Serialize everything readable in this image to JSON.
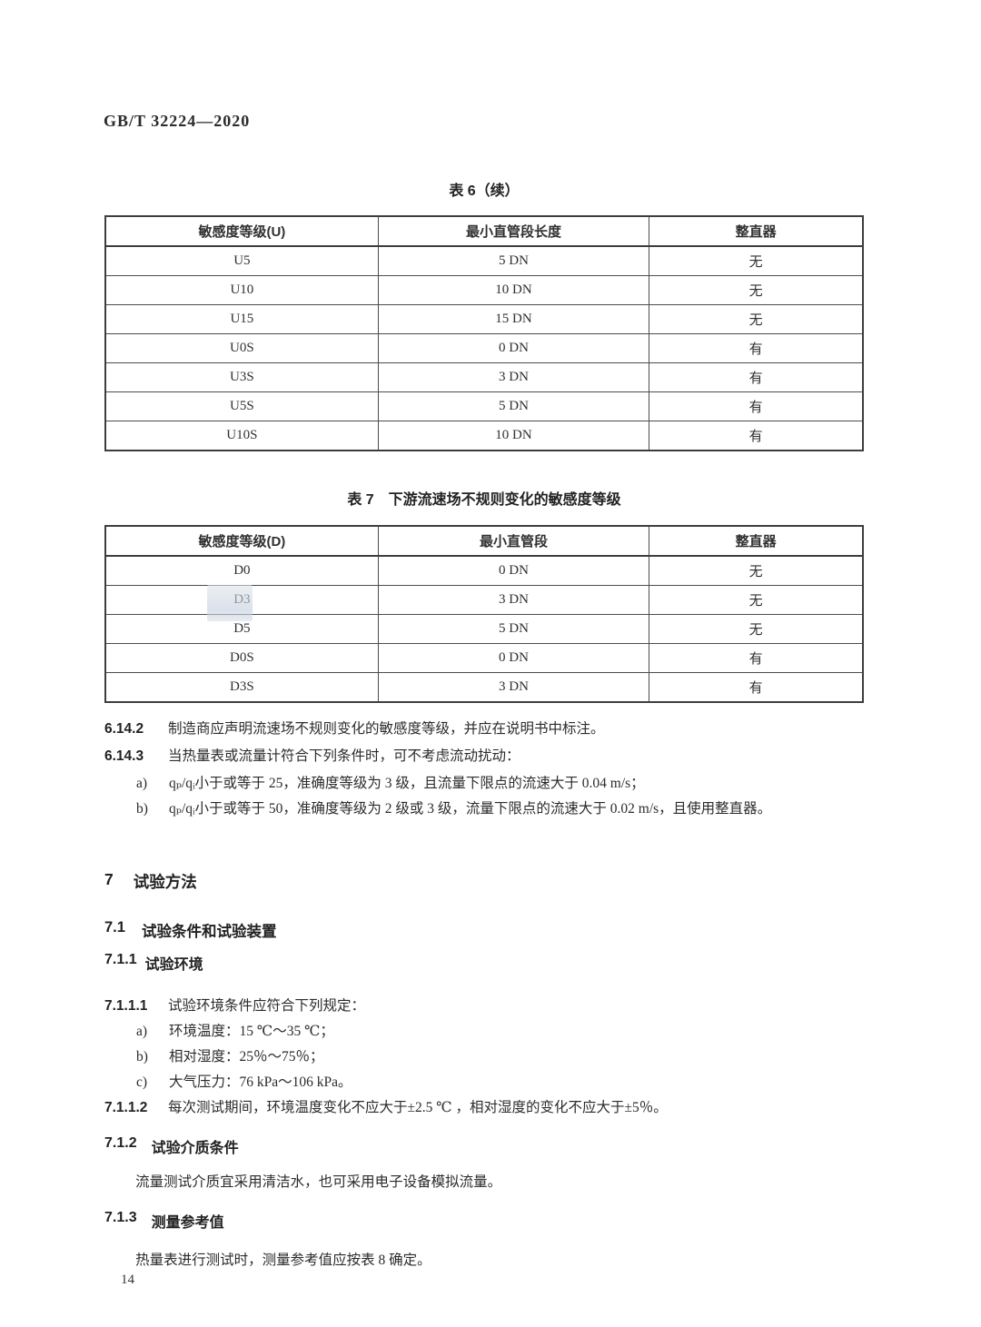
{
  "page": {
    "doc_number": "GB/T 32224—2020",
    "page_number": "14"
  },
  "table6": {
    "title": "表 6（续）",
    "headers": [
      "敏感度等级(U)",
      "最小直管段长度",
      "整直器"
    ],
    "rows": [
      [
        "U5",
        "5 DN",
        "无"
      ],
      [
        "U10",
        "10 DN",
        "无"
      ],
      [
        "U15",
        "15 DN",
        "无"
      ],
      [
        "U0S",
        "0 DN",
        "有"
      ],
      [
        "U3S",
        "3 DN",
        "有"
      ],
      [
        "U5S",
        "5 DN",
        "有"
      ],
      [
        "U10S",
        "10 DN",
        "有"
      ]
    ]
  },
  "table7": {
    "title": "表 7　下游流速场不规则变化的敏感度等级",
    "headers": [
      "敏感度等级(D)",
      "最小直管段",
      "整直器"
    ],
    "rows": [
      [
        "D0",
        "0 DN",
        "无"
      ],
      [
        "D3",
        "3 DN",
        "无"
      ],
      [
        "D5",
        "5 DN",
        "无"
      ],
      [
        "D0S",
        "0 DN",
        "有"
      ],
      [
        "D3S",
        "3 DN",
        "有"
      ]
    ]
  },
  "clauses": {
    "c6142": {
      "num": "6.14.2",
      "text": "制造商应声明流速场不规则变化的敏感度等级，并应在说明书中标注。"
    },
    "c6143": {
      "num": "6.14.3",
      "text": "当热量表或流量计符合下列条件时，可不考虑流动扰动："
    },
    "c6143a": {
      "label": "a)",
      "text": "qₚ/qᵢ小于或等于 25，准确度等级为 3 级，且流量下限点的流速大于 0.04 m/s；"
    },
    "c6143b": {
      "label": "b)",
      "text": "qₚ/qᵢ小于或等于 50，准确度等级为 2 级或 3 级，流量下限点的流速大于 0.02 m/s，且使用整直器。"
    }
  },
  "section7": {
    "h7": {
      "num": "7",
      "title": "试验方法"
    },
    "h71": {
      "num": "7.1",
      "title": "试验条件和试验装置"
    },
    "h711": {
      "num": "7.1.1",
      "title": "试验环境"
    },
    "c7111": {
      "num": "7.1.1.1",
      "text": "试验环境条件应符合下列规定："
    },
    "c7111a": {
      "label": "a)",
      "text": "环境温度：15 ℃～35 ℃；"
    },
    "c7111b": {
      "label": "b)",
      "text": "相对湿度：25％～75％；"
    },
    "c7111c": {
      "label": "c)",
      "text": "大气压力：76 kPa～106 kPa。"
    },
    "c7112": {
      "num": "7.1.1.2",
      "text": "每次测试期间，环境温度变化不应大于±2.5 ℃ ，相对湿度的变化不应大于±5％。"
    },
    "h712": {
      "num": "7.1.2",
      "title": "试验介质条件"
    },
    "p712": "流量测试介质宜采用清洁水，也可采用电子设备模拟流量。",
    "h713": {
      "num": "7.1.3",
      "title": "测量参考值"
    },
    "p713": "热量表进行测试时，测量参考值应按表 8 确定。"
  }
}
